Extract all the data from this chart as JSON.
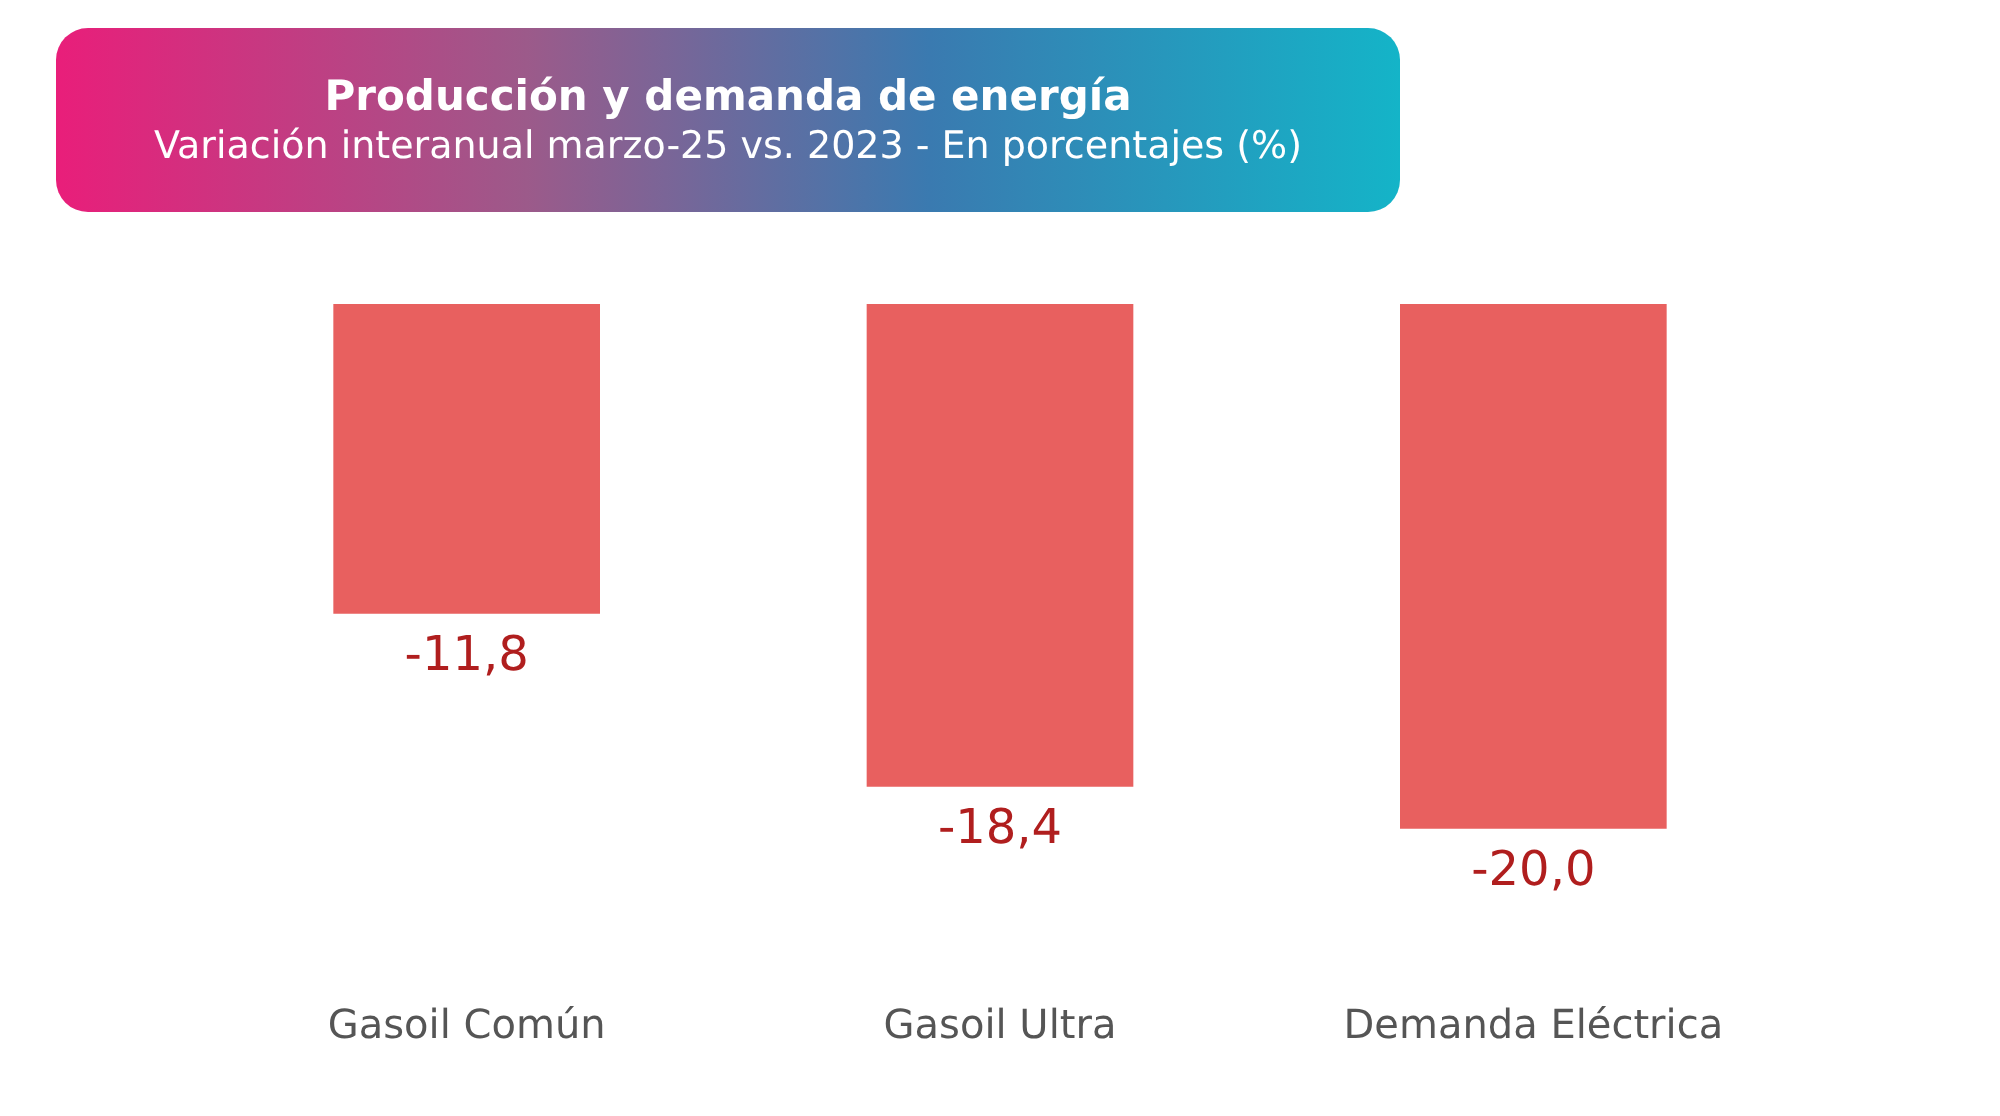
{
  "chart_data": {
    "type": "bar",
    "title": "Producción y demanda de energía",
    "subtitle": "Variación interanual marzo-25 vs. 2023 - En porcentajes (%)",
    "categories": [
      "Gasoil Común",
      "Gasoil Ultra",
      "Demanda Eléctrica"
    ],
    "values": [
      -11.8,
      -18.4,
      -20.0
    ],
    "value_labels": [
      "-11,8",
      "-18,4",
      "-20,0"
    ],
    "color": "#e8605f",
    "grid": false,
    "legend": false
  }
}
